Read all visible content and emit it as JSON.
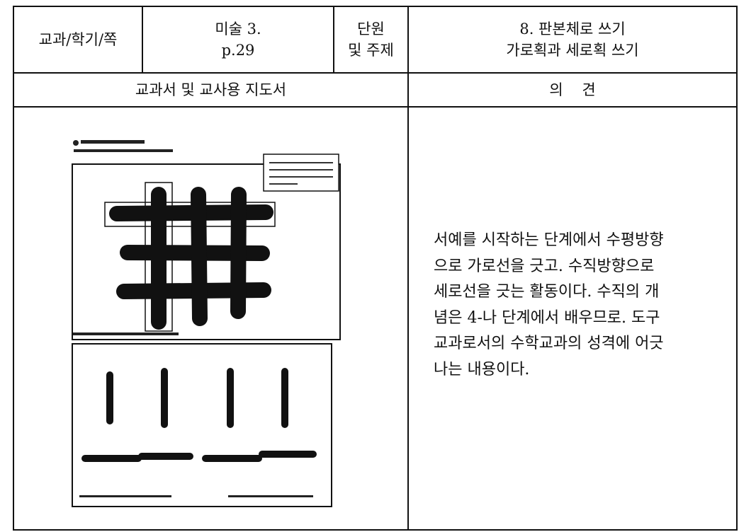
{
  "header": {
    "subject_label": "교과/학기/쪽",
    "book": [
      "미술 3.",
      "p.29"
    ],
    "unit_label": [
      "단원",
      "및 주제"
    ],
    "unit": [
      "8. 판본체로 쓰기",
      "가로획과 세로획 쓰기"
    ]
  },
  "sections": {
    "left": "교과서 및 교사용 지도서",
    "right": "의    견"
  },
  "opinion": [
    "서예를 시작하는 단계에서 수평방향",
    "으로 가로선을 긋고. 수직방향으로",
    "세로선을 긋는 활동이다. 수직의 개",
    "념은 4-나 단계에서 배우므로. 도구",
    "교과로서의 수학교과의 성격에 어긋",
    "나는 내용이다."
  ]
}
